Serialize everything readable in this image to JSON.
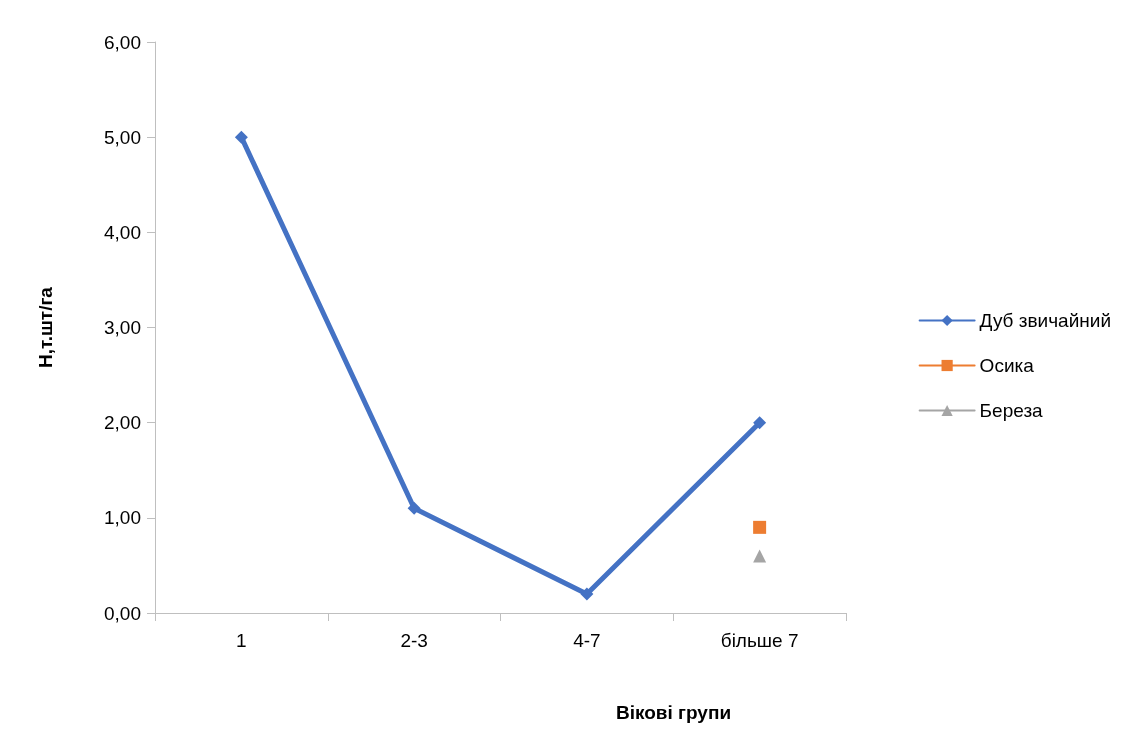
{
  "chart_data": {
    "type": "line",
    "xlabel": "Вікові групи",
    "ylabel": "Н,т.шт/га",
    "categories": [
      "1",
      "2-3",
      "4-7",
      "більше 7"
    ],
    "series": [
      {
        "name": "Дуб звичайний",
        "color": "#4472c4",
        "marker": "diamond",
        "values": [
          5.0,
          1.1,
          0.2,
          2.0
        ]
      },
      {
        "name": "Осика",
        "color": "#ed7d31",
        "marker": "square",
        "values": [
          null,
          null,
          null,
          0.9
        ]
      },
      {
        "name": "Береза",
        "color": "#a5a5a5",
        "marker": "triangle",
        "values": [
          null,
          null,
          null,
          0.6
        ]
      }
    ],
    "ylim": [
      0,
      6
    ],
    "yticks": [
      {
        "value": 0,
        "label": "0,00"
      },
      {
        "value": 1,
        "label": "1,00"
      },
      {
        "value": 2,
        "label": "2,00"
      },
      {
        "value": 3,
        "label": "3,00"
      },
      {
        "value": 4,
        "label": "4,00"
      },
      {
        "value": 5,
        "label": "5,00"
      },
      {
        "value": 6,
        "label": "6,00"
      }
    ],
    "grid": false,
    "legend": "right",
    "line_style": "solid"
  }
}
